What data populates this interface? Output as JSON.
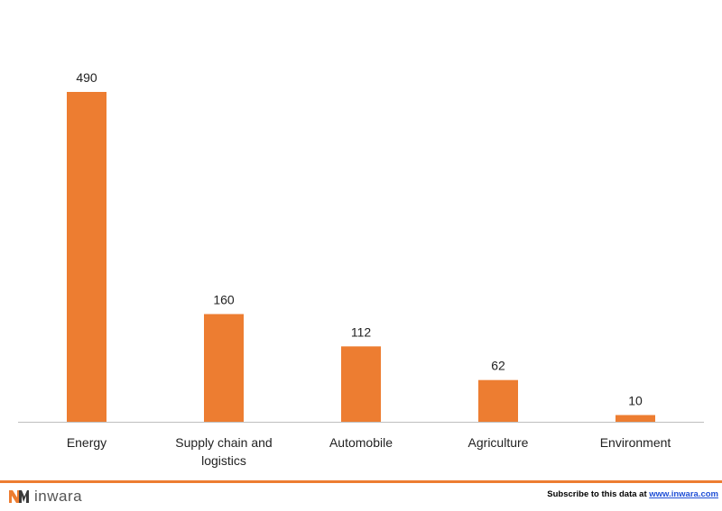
{
  "chart_data": {
    "type": "bar",
    "title": "",
    "xlabel": "",
    "ylabel": "",
    "categories": [
      "Energy",
      "Supply chain and logistics",
      "Automobile",
      "Agriculture",
      "Environment"
    ],
    "category_lines": [
      [
        "Energy"
      ],
      [
        "Supply chain and",
        "logistics"
      ],
      [
        "Automobile"
      ],
      [
        "Agriculture"
      ],
      [
        "Environment"
      ]
    ],
    "values": [
      490,
      160,
      112,
      62,
      10
    ],
    "data_labels": [
      "490",
      "160",
      "112",
      "62",
      "10"
    ],
    "ylim": [
      0,
      490
    ],
    "grid": false,
    "legend": "none",
    "bar_color": "#ED7D31"
  },
  "footer": {
    "brand_name": "inwara",
    "brand_color": "#ED7D31",
    "subscribe_text": "Subscribe to this data at",
    "subscribe_link": "www.inwara.com"
  }
}
